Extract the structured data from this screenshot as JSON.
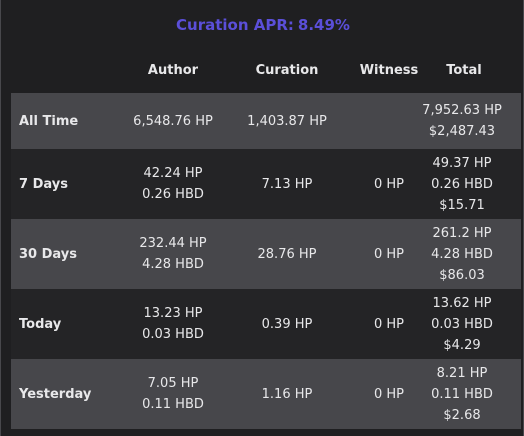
{
  "curation": {
    "label": "Curation APR:",
    "value": "8.49%"
  },
  "columns": [
    "Author",
    "Curation",
    "Witness",
    "Total"
  ],
  "rows": [
    {
      "label": "All Time",
      "author": [
        "6,548.76 HP"
      ],
      "curation": [
        "1,403.87 HP"
      ],
      "witness": [
        ""
      ],
      "total": [
        "7,952.63 HP",
        "$2,487.43"
      ]
    },
    {
      "label": "7 Days",
      "author": [
        "42.24 HP",
        "0.26 HBD"
      ],
      "curation": [
        "7.13 HP"
      ],
      "witness": [
        "0 HP"
      ],
      "total": [
        "49.37 HP",
        "0.26 HBD",
        "$15.71"
      ]
    },
    {
      "label": "30 Days",
      "author": [
        "232.44 HP",
        "4.28 HBD"
      ],
      "curation": [
        "28.76 HP"
      ],
      "witness": [
        "0 HP"
      ],
      "total": [
        "261.2 HP",
        "4.28 HBD",
        "$86.03"
      ]
    },
    {
      "label": "Today",
      "author": [
        "13.23 HP",
        "0.03 HBD"
      ],
      "curation": [
        "0.39 HP"
      ],
      "witness": [
        "0 HP"
      ],
      "total": [
        "13.62 HP",
        "0.03 HBD",
        "$4.29"
      ]
    },
    {
      "label": "Yesterday",
      "author": [
        "7.05 HP",
        "0.11 HBD"
      ],
      "curation": [
        "1.16 HP"
      ],
      "witness": [
        "0 HP"
      ],
      "total": [
        "8.21 HP",
        "0.11 HBD",
        "$2.68"
      ]
    }
  ]
}
